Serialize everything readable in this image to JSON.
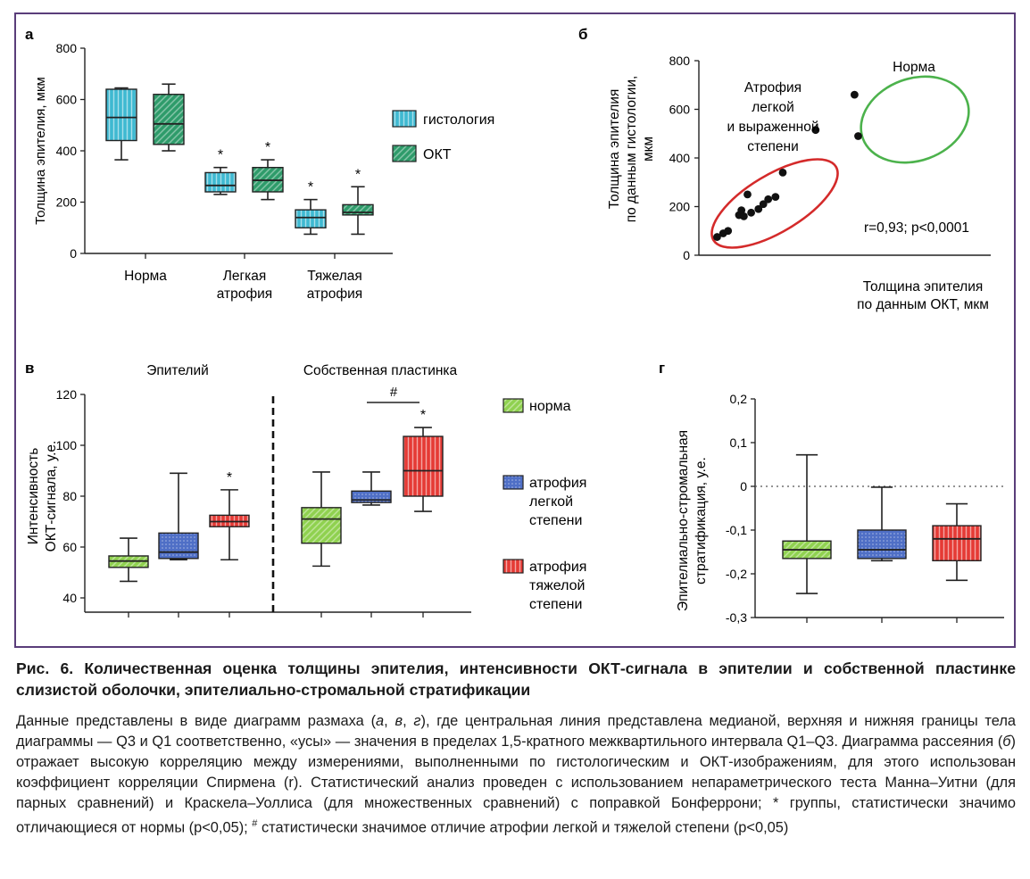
{
  "colors": {
    "frame": "#5a3d7a",
    "histology": "#3fb9d1",
    "oct": "#2e9b6a",
    "norm": "#8fd14f",
    "mild": "#4f6fc6",
    "severe": "#e53a35",
    "ellipse_red": "#d42a2a",
    "ellipse_green": "#4cb24c"
  },
  "chart_data": [
    {
      "panel": "a",
      "type": "box",
      "ylabel": "Толщина эпителия, мкм",
      "ylim": [
        0,
        800
      ],
      "yticks": [
        "0",
        "200",
        "400",
        "600",
        "800"
      ],
      "categories": [
        "Норма",
        "Легкая атрофия",
        "Тяжелая атрофия"
      ],
      "category_lines": [
        [
          "Норма"
        ],
        [
          "Легкая",
          "атрофия"
        ],
        [
          "Тяжелая",
          "атрофия"
        ]
      ],
      "legend": [
        "гистология",
        "ОКТ"
      ],
      "series": [
        {
          "name": "гистология",
          "boxes": [
            {
              "min": 365,
              "q1": 440,
              "median": 530,
              "q3": 640,
              "max": 645,
              "mark": ""
            },
            {
              "min": 230,
              "q1": 240,
              "median": 265,
              "q3": 315,
              "max": 335,
              "mark": "*"
            },
            {
              "min": 75,
              "q1": 100,
              "median": 140,
              "q3": 170,
              "max": 210,
              "mark": "*"
            }
          ]
        },
        {
          "name": "ОКТ",
          "boxes": [
            {
              "min": 400,
              "q1": 425,
              "median": 505,
              "q3": 620,
              "max": 660,
              "mark": ""
            },
            {
              "min": 210,
              "q1": 240,
              "median": 285,
              "q3": 335,
              "max": 365,
              "mark": "*"
            },
            {
              "min": 75,
              "q1": 150,
              "median": 160,
              "q3": 190,
              "max": 260,
              "mark": "*"
            }
          ]
        }
      ]
    },
    {
      "panel": "б",
      "type": "scatter",
      "xlabel": "Толщина эпителия по данным ОКТ, мкм",
      "xlabel_lines": [
        "Толщина эпителия",
        "по данным ОКТ, мкм"
      ],
      "ylabel_lines": [
        "Толщина эпителия",
        "по данным гистологии,",
        "мкм"
      ],
      "ylim": [
        0,
        800
      ],
      "xlim": [
        0,
        800
      ],
      "yticks": [
        "0",
        "200",
        "400",
        "600",
        "800"
      ],
      "points": [
        {
          "x": 75,
          "y": 75
        },
        {
          "x": 100,
          "y": 90
        },
        {
          "x": 120,
          "y": 100
        },
        {
          "x": 165,
          "y": 165
        },
        {
          "x": 175,
          "y": 185
        },
        {
          "x": 185,
          "y": 160
        },
        {
          "x": 200,
          "y": 250
        },
        {
          "x": 215,
          "y": 175
        },
        {
          "x": 245,
          "y": 190
        },
        {
          "x": 265,
          "y": 210
        },
        {
          "x": 285,
          "y": 230
        },
        {
          "x": 315,
          "y": 240
        },
        {
          "x": 345,
          "y": 340
        },
        {
          "x": 480,
          "y": 515
        },
        {
          "x": 640,
          "y": 660
        },
        {
          "x": 655,
          "y": 490
        }
      ],
      "groups": [
        {
          "label_lines": [
            "Атрофия",
            "легкой",
            "и выраженной",
            "степени"
          ]
        },
        {
          "label_lines": [
            "Норма"
          ]
        }
      ],
      "annotation": "r=0,93; p<0,0001"
    },
    {
      "panel": "в",
      "type": "box",
      "ylabel_lines": [
        "Интенсивность",
        "ОКТ-сигнала, у.е."
      ],
      "ylim": [
        40,
        120
      ],
      "yticks": [
        "40",
        "60",
        "80",
        "100",
        "120"
      ],
      "groups": [
        "Эпителий",
        "Собственная пластинка"
      ],
      "legend": [
        {
          "name": "норма",
          "lines": [
            "норма"
          ]
        },
        {
          "name": "атрофия легкой степени",
          "lines": [
            "атрофия",
            "легкой",
            "степени"
          ]
        },
        {
          "name": "атрофия тяжелой степени",
          "lines": [
            "атрофия",
            "тяжелой",
            "степени"
          ]
        }
      ],
      "boxes": [
        {
          "group": "Эпителий",
          "series": "норма",
          "min": 46.5,
          "q1": 52,
          "median": 54.5,
          "q3": 56.5,
          "max": 63.5,
          "mark": ""
        },
        {
          "group": "Эпителий",
          "series": "атрофия легкой степени",
          "min": 55,
          "q1": 55.5,
          "median": 58,
          "q3": 65.5,
          "max": 89,
          "mark": ""
        },
        {
          "group": "Эпителий",
          "series": "атрофия тяжелой степени",
          "min": 55,
          "q1": 68,
          "median": 70,
          "q3": 72.5,
          "max": 82.5,
          "mark": "*"
        },
        {
          "group": "Собственная пластинка",
          "series": "норма",
          "min": 52.5,
          "q1": 61.5,
          "median": 71,
          "q3": 75.5,
          "max": 89.5,
          "mark": ""
        },
        {
          "group": "Собственная пластинка",
          "series": "атрофия легкой степени",
          "min": 76.5,
          "q1": 77.5,
          "median": 78.5,
          "q3": 82,
          "max": 89.5,
          "mark": ""
        },
        {
          "group": "Собственная пластинка",
          "series": "атрофия тяжелой степени",
          "min": 74,
          "q1": 80,
          "median": 90,
          "q3": 103.5,
          "max": 107,
          "mark": "*"
        }
      ],
      "bracket_label": "#"
    },
    {
      "panel": "г",
      "type": "box",
      "ylabel_lines": [
        "Эпителиально-стромальная",
        "стратификация, у.е."
      ],
      "ylim": [
        -0.3,
        0.2
      ],
      "yticks": [
        "0,2",
        "0,1",
        "0",
        "-0,1",
        "-0,2",
        "-0,3"
      ],
      "reference_line": 0,
      "boxes": [
        {
          "series": "норма",
          "min": -0.245,
          "q1": -0.165,
          "median": -0.145,
          "q3": -0.125,
          "max": 0.072
        },
        {
          "series": "атрофия легкой степени",
          "min": -0.17,
          "q1": -0.165,
          "median": -0.145,
          "q3": -0.1,
          "max": -0.002
        },
        {
          "series": "атрофия тяжелой степени",
          "min": -0.215,
          "q1": -0.17,
          "median": -0.12,
          "q3": -0.09,
          "max": -0.04
        }
      ]
    }
  ],
  "caption": {
    "title": "Рис. 6. Количественная оценка толщины эпителия, интенсивности ОКТ-сигнала в эпителии и собственной пластинке слизистой оболочки, эпителиально-стромальной стратификации",
    "p1": "Данные представлены в виде диаграмм размаха (",
    "i1": "а",
    "s1": ", ",
    "i2": "в",
    "s2": ", ",
    "i3": "г",
    "p2": "), где центральная линия представлена медианой, верхняя и нижняя границы тела диаграммы — Q3 и Q1 соответственно, «усы» — значения в пределах 1,5-кратного межквартильного интервала Q1–Q3. Диаграмма рассеяния (",
    "i4": "б",
    "p3": ") отражает высокую корреляцию между измерениями, выполненными по гистологическим и ОКТ-изображениям, для этого использован коэффициент корреляции Спирмена (r). Статистический анализ проведен с использованием непараметрического теста Манна–Уитни (для парных сравнений) и Краскела–Уоллиса (для множественных сравнений) с поправкой Бонферрони; * группы, статистически значимо отличающиеся от нормы (p<0,05); ",
    "sup": "#",
    "p4": " статистически значимое отличие атрофии легкой и тяжелой степени (p<0,05)"
  }
}
